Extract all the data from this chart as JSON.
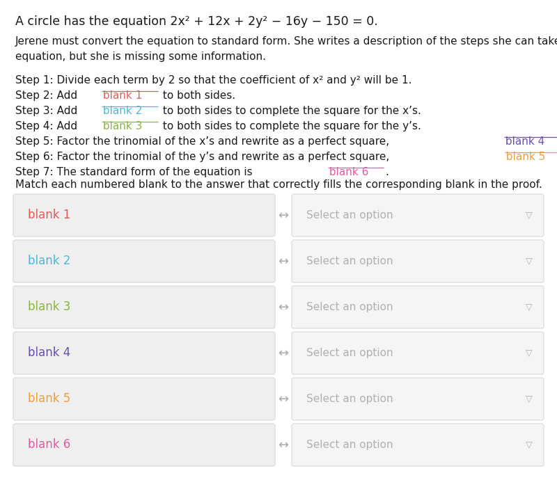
{
  "background_color": "#ffffff",
  "title_line1": "A circle has the equation 2x² + 12x + 2y² − 16y − 150 = 0.",
  "paragraph": "Jerene must convert the equation to standard form. She writes a description of the steps she can take to convert the\nequation, but she is missing some information.",
  "blank_labels": [
    "blank 1",
    "blank 2",
    "blank 3",
    "blank 4",
    "blank 5",
    "blank 6"
  ],
  "blank_colors": [
    "#e05c5c",
    "#4db8d4",
    "#8ab540",
    "#6b4db5",
    "#e8a040",
    "#e05ca0"
  ],
  "match_text": "Match each numbered blank to the answer that correctly fills the corresponding blank in the proof.",
  "select_option_text": "Select an option",
  "arrow_symbol": "↔",
  "box_bg_left": "#efefef",
  "box_bg_right": "#f5f5f5",
  "box_border_color": "#d8d8d8",
  "select_text_color": "#b0b0b0",
  "arrow_color": "#aaaaaa",
  "step1": "Step 1: Divide each term by 2 so that the coefficient of x² and y² will be 1.",
  "step2_pre": "Step 2: Add ",
  "step2_suf": " to both sides.",
  "step3_pre": "Step 3: Add ",
  "step3_suf": " to both sides to complete the square for the x’s.",
  "step4_pre": "Step 4: Add ",
  "step4_suf": " to both sides to complete the square for the y’s.",
  "step5_pre": "Step 5: Factor the trinomial of the x’s and rewrite as a perfect square, ",
  "step5_suf": ".",
  "step6_pre": "Step 6: Factor the trinomial of the y’s and rewrite as a perfect square, ",
  "step6_suf": ".",
  "step7_pre": "Step 7: The standard form of the equation is ",
  "step7_suf": "."
}
